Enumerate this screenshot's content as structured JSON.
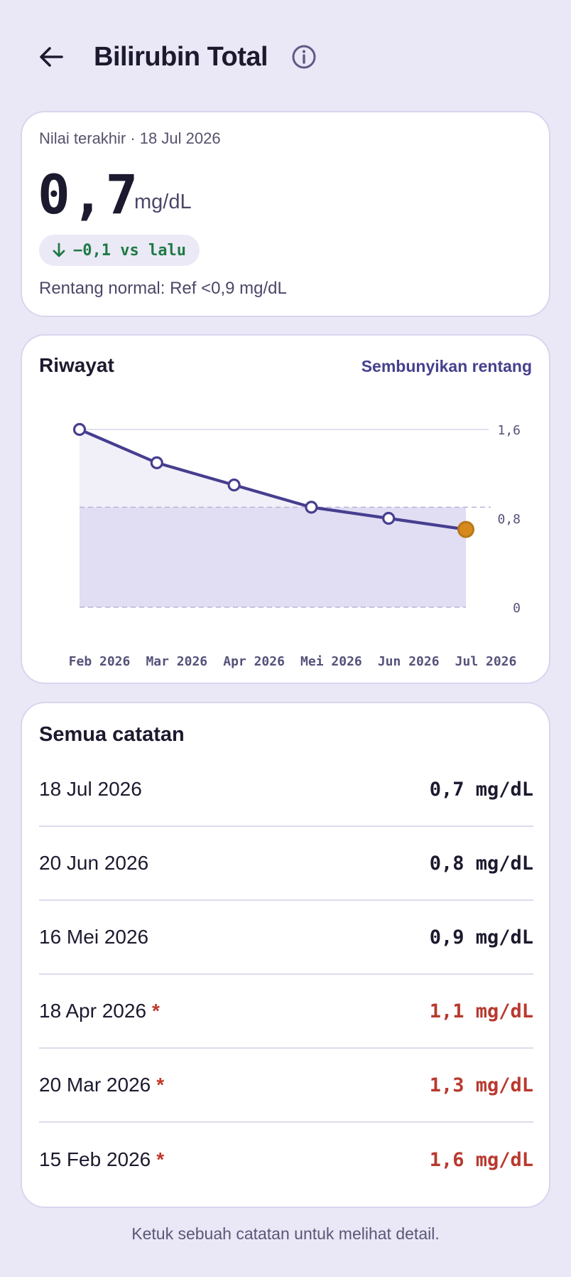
{
  "header": {
    "title": "Bilirubin Total",
    "back_icon": "arrow-left-icon",
    "info_icon": "info-circle-icon"
  },
  "summary": {
    "meta": "Nilai terakhir · 18 Jul 2026",
    "value": "0,7",
    "unit": "mg/dL",
    "delta": "−0,1 vs lalu",
    "delta_icon": "arrow-down-icon",
    "range": "Rentang normal: Ref <0,9 mg/dL"
  },
  "history": {
    "title": "Riwayat",
    "toggle_label": "Sembunyikan rentang"
  },
  "chart_data": {
    "type": "line",
    "categories": [
      "Feb 2026",
      "Mar 2026",
      "Apr 2026",
      "Mei 2026",
      "Jun 2026",
      "Jul 2026"
    ],
    "values": [
      1.6,
      1.3,
      1.1,
      0.9,
      0.8,
      0.7
    ],
    "y_ticks": [
      "1,6",
      "0,8",
      "0"
    ],
    "y_tick_values": [
      1.6,
      0.8,
      0
    ],
    "ylim": [
      0,
      1.6
    ],
    "reference_range": [
      0,
      0.9
    ],
    "grid": true,
    "colors": {
      "line": "#463e8f",
      "point_fill": "#ffffff",
      "latest_point": "#d68a1e",
      "ref_band": "#e1ddf3",
      "area_fill": "#f1f0f8"
    }
  },
  "records": {
    "title": "Semua catatan",
    "items": [
      {
        "date": "18 Jul 2026",
        "value": "0,7 mg/dL",
        "flag": "",
        "high": false
      },
      {
        "date": "20 Jun 2026",
        "value": "0,8 mg/dL",
        "flag": "",
        "high": false
      },
      {
        "date": "16 Mei 2026",
        "value": "0,9 mg/dL",
        "flag": "",
        "high": false
      },
      {
        "date": "18 Apr 2026",
        "value": "1,1 mg/dL",
        "flag": "*",
        "high": true
      },
      {
        "date": "20 Mar 2026",
        "value": "1,3 mg/dL",
        "flag": "*",
        "high": true
      },
      {
        "date": "15 Feb 2026",
        "value": "1,6 mg/dL",
        "flag": "*",
        "high": true
      }
    ]
  },
  "footer": {
    "hint": "Ketuk sebuah catatan untuk melihat detail."
  }
}
